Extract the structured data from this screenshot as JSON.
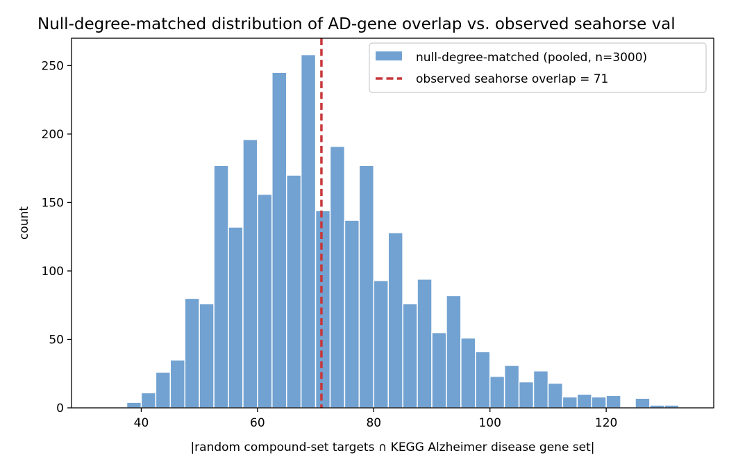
{
  "chart_data": {
    "type": "bar",
    "title": "Null-degree-matched distribution of AD-gene overlap vs. observed seahorse val",
    "xlabel": "|random compound-set targets ∩ KEGG Alzheimer disease gene set|",
    "ylabel": "count",
    "xlim": [
      28,
      138.5
    ],
    "ylim": [
      0,
      270
    ],
    "xticks": [
      40,
      60,
      80,
      100,
      120
    ],
    "yticks": [
      0,
      50,
      100,
      150,
      200,
      250
    ],
    "bin_width": 2.5,
    "bars": [
      {
        "x0": 37.5,
        "value": 4
      },
      {
        "x0": 40.0,
        "value": 11
      },
      {
        "x0": 42.5,
        "value": 26
      },
      {
        "x0": 45.0,
        "value": 35
      },
      {
        "x0": 47.5,
        "value": 80
      },
      {
        "x0": 50.0,
        "value": 76
      },
      {
        "x0": 52.5,
        "value": 177
      },
      {
        "x0": 55.0,
        "value": 132
      },
      {
        "x0": 57.5,
        "value": 196
      },
      {
        "x0": 60.0,
        "value": 156
      },
      {
        "x0": 62.5,
        "value": 245
      },
      {
        "x0": 65.0,
        "value": 170
      },
      {
        "x0": 67.5,
        "value": 258
      },
      {
        "x0": 70.0,
        "value": 144
      },
      {
        "x0": 72.5,
        "value": 191
      },
      {
        "x0": 75.0,
        "value": 137
      },
      {
        "x0": 77.5,
        "value": 177
      },
      {
        "x0": 80.0,
        "value": 93
      },
      {
        "x0": 82.5,
        "value": 128
      },
      {
        "x0": 85.0,
        "value": 76
      },
      {
        "x0": 87.5,
        "value": 94
      },
      {
        "x0": 90.0,
        "value": 55
      },
      {
        "x0": 92.5,
        "value": 82
      },
      {
        "x0": 95.0,
        "value": 51
      },
      {
        "x0": 97.5,
        "value": 41
      },
      {
        "x0": 100.0,
        "value": 23
      },
      {
        "x0": 102.5,
        "value": 31
      },
      {
        "x0": 105.0,
        "value": 19
      },
      {
        "x0": 107.5,
        "value": 27
      },
      {
        "x0": 110.0,
        "value": 18
      },
      {
        "x0": 112.5,
        "value": 8
      },
      {
        "x0": 115.0,
        "value": 10
      },
      {
        "x0": 117.5,
        "value": 8
      },
      {
        "x0": 120.0,
        "value": 9
      },
      {
        "x0": 125.0,
        "value": 7
      },
      {
        "x0": 127.5,
        "value": 2
      },
      {
        "x0": 130.0,
        "value": 2
      }
    ],
    "observed_line": {
      "x": 71,
      "color": "#c7373a"
    },
    "bar_color": "#72a2d1",
    "legend": {
      "placement": "top-right",
      "hist_label": "null-degree-matched (pooled, n=3000)",
      "line_label": "observed seahorse overlap = 71"
    },
    "grid": false
  }
}
